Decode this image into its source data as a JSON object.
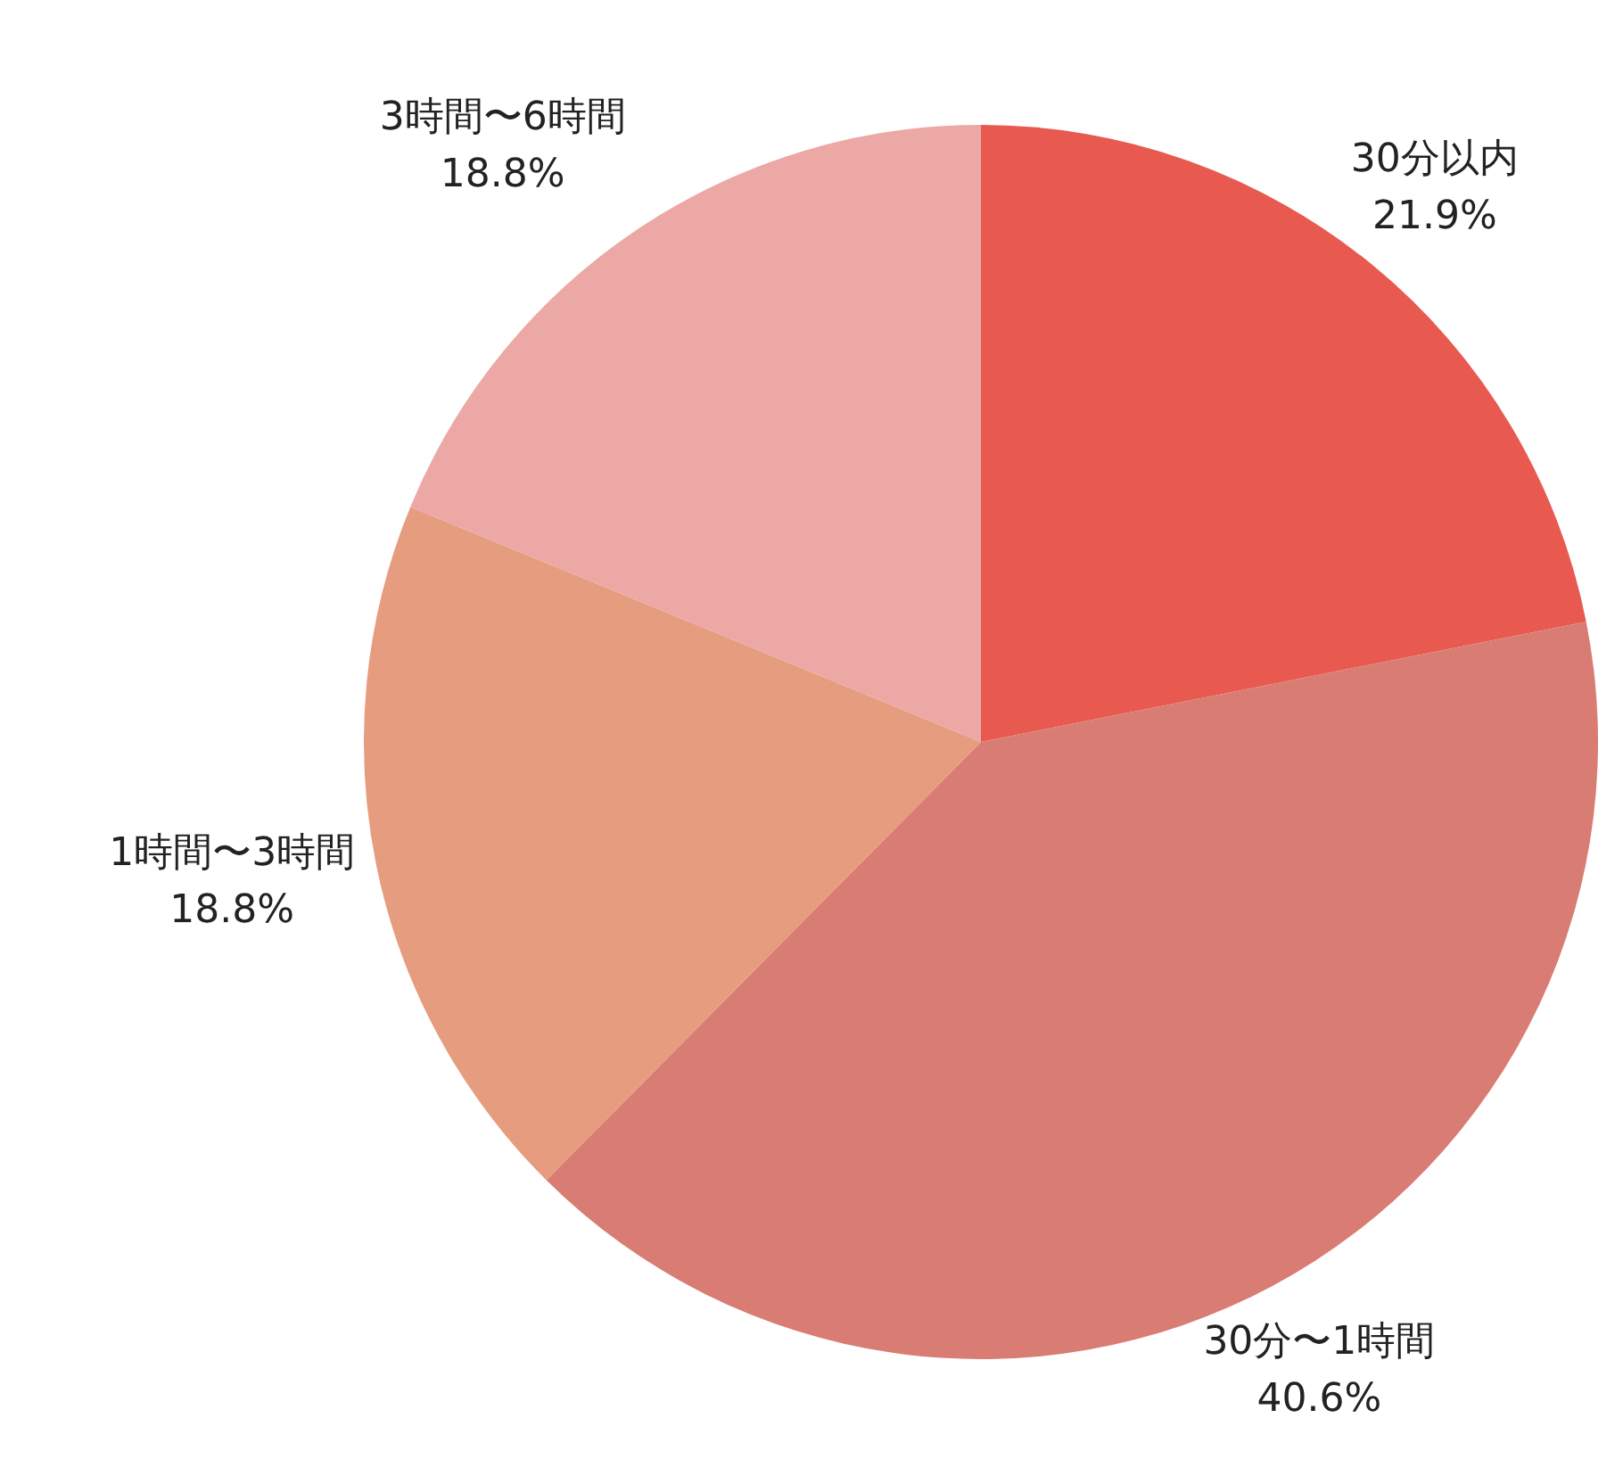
{
  "chart_data": {
    "type": "pie",
    "categories": [
      "30分以内",
      "30分〜1時間",
      "1時間〜3時間",
      "3時間〜6時間"
    ],
    "values": [
      21.9,
      40.6,
      18.8,
      18.8
    ],
    "value_labels": [
      "21.9%",
      "40.6%",
      "18.8%",
      "18.8%"
    ],
    "colors": [
      "#e85a50",
      "#d97c74",
      "#e69c7e",
      "#eca8a5"
    ],
    "legend": false
  }
}
